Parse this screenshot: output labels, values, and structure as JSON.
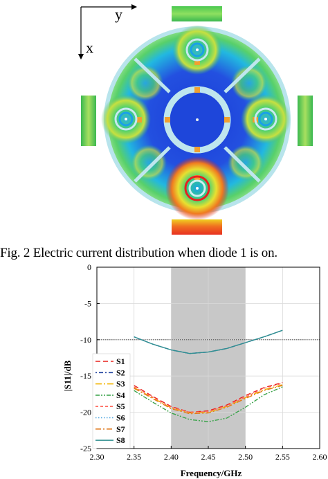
{
  "figure_top": {
    "axis_x_label": "x",
    "axis_y_label": "y"
  },
  "caption": "Fig. 2 Electric current distribution when diode 1 is on.",
  "chart_data": {
    "type": "line",
    "xlabel": "Frequency/GHz",
    "ylabel": "|S11|/dB",
    "xlim": [
      2.3,
      2.6
    ],
    "ylim": [
      -25,
      0
    ],
    "x_ticks": [
      "2.30",
      "2.35",
      "2.40",
      "2.45",
      "2.50",
      "2.55",
      "2.60"
    ],
    "y_ticks": [
      "0",
      "-5",
      "-10",
      "-15",
      "-20",
      "-25"
    ],
    "shaded_band": [
      2.4,
      2.5
    ],
    "reference_line_y": -10,
    "grid": true,
    "legend_position": "bottom-left",
    "series": [
      {
        "name": "S1",
        "color": "#e8201c",
        "dash": "7,4",
        "x": [
          2.35,
          2.375,
          2.4,
          2.425,
          2.45,
          2.475,
          2.5,
          2.525,
          2.55
        ],
        "y": [
          -16.3,
          -17.8,
          -19.2,
          -20.0,
          -19.8,
          -19.0,
          -17.7,
          -16.6,
          -15.9
        ]
      },
      {
        "name": "S2",
        "color": "#1b3f9e",
        "dash": "2,3,6,3",
        "x": [
          2.35,
          2.375,
          2.4,
          2.425,
          2.45,
          2.475,
          2.5,
          2.525,
          2.55
        ],
        "y": [
          -9.6,
          -10.6,
          -11.4,
          -11.9,
          -11.7,
          -11.2,
          -10.4,
          -9.6,
          -8.7
        ]
      },
      {
        "name": "S3",
        "color": "#f2b400",
        "dash": "9,3,2,3",
        "x": [
          2.35,
          2.375,
          2.4,
          2.425,
          2.45,
          2.475,
          2.5,
          2.525,
          2.55
        ],
        "y": [
          -16.6,
          -18.0,
          -19.4,
          -20.1,
          -20.0,
          -19.2,
          -18.0,
          -16.9,
          -16.2
        ]
      },
      {
        "name": "S4",
        "color": "#3aa34a",
        "dash": "6,2,2,2,2,2",
        "x": [
          2.35,
          2.375,
          2.4,
          2.425,
          2.45,
          2.475,
          2.5,
          2.525,
          2.55
        ],
        "y": [
          -17.0,
          -18.6,
          -20.1,
          -21.0,
          -21.3,
          -20.8,
          -19.3,
          -17.6,
          -16.5
        ]
      },
      {
        "name": "S5",
        "color": "#ff6a5e",
        "dash": "4,3",
        "x": [
          2.35,
          2.375,
          2.4,
          2.425,
          2.45,
          2.475,
          2.5,
          2.525,
          2.55
        ],
        "y": [
          -16.5,
          -17.9,
          -19.3,
          -20.0,
          -19.9,
          -19.1,
          -17.9,
          -16.7,
          -16.0
        ]
      },
      {
        "name": "S6",
        "color": "#4aa3df",
        "dash": "1.5,2.5",
        "x": [
          2.35,
          2.375,
          2.4,
          2.425,
          2.45,
          2.475,
          2.5,
          2.525,
          2.55
        ],
        "y": [
          -9.6,
          -10.6,
          -11.4,
          -11.9,
          -11.7,
          -11.2,
          -10.4,
          -9.6,
          -8.7
        ]
      },
      {
        "name": "S7",
        "color": "#e07a1f",
        "dash": "8,3,2,3",
        "x": [
          2.35,
          2.375,
          2.4,
          2.425,
          2.45,
          2.475,
          2.5,
          2.525,
          2.55
        ],
        "y": [
          -16.7,
          -18.1,
          -19.5,
          -20.2,
          -20.1,
          -19.3,
          -18.1,
          -17.0,
          -16.3
        ]
      },
      {
        "name": "S8",
        "color": "#2f8f8f",
        "dash": "",
        "x": [
          2.35,
          2.375,
          2.4,
          2.425,
          2.45,
          2.475,
          2.5,
          2.525,
          2.55
        ],
        "y": [
          -9.6,
          -10.6,
          -11.4,
          -11.9,
          -11.7,
          -11.2,
          -10.4,
          -9.6,
          -8.7
        ]
      }
    ]
  }
}
